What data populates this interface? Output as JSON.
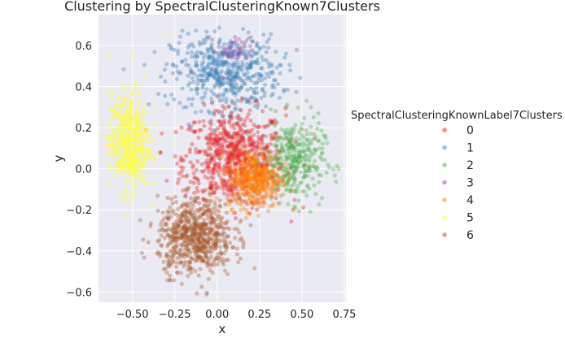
{
  "chart_data": {
    "type": "scatter",
    "title": "Clustering by SpectralClusteringKnown7Clusters",
    "xlabel": "x",
    "ylabel": "y",
    "xlim": [
      -0.7,
      0.76
    ],
    "ylim": [
      -0.65,
      0.75
    ],
    "xticks": [
      -0.5,
      -0.25,
      0.0,
      0.25,
      0.5,
      0.75
    ],
    "xtick_labels": [
      "−0.50",
      "−0.25",
      "0.00",
      "0.25",
      "0.50",
      "0.75"
    ],
    "yticks": [
      -0.6,
      -0.4,
      -0.2,
      0.0,
      0.2,
      0.4,
      0.6
    ],
    "ytick_labels": [
      "−0.6",
      "−0.4",
      "−0.2",
      "0.0",
      "0.2",
      "0.4",
      "0.6"
    ],
    "grid": true,
    "background": "#eaeaf2",
    "legend": {
      "title": "SpectralClusteringKnownLabel7Clusters",
      "placement": "right outside"
    },
    "series": [
      {
        "name": "0",
        "color": "#e41a1c",
        "approx_center": [
          0.1,
          0.05
        ],
        "approx_spread": [
          0.15,
          0.12
        ],
        "approx_points": 700
      },
      {
        "name": "1",
        "color": "#377eb8",
        "approx_center": [
          0.05,
          0.47
        ],
        "approx_spread": [
          0.16,
          0.09
        ],
        "approx_points": 500
      },
      {
        "name": "2",
        "color": "#4daf4a",
        "approx_center": [
          0.45,
          0.04
        ],
        "approx_spread": [
          0.09,
          0.1
        ],
        "approx_points": 350
      },
      {
        "name": "3",
        "color": "#984ea3",
        "approx_center": [
          0.1,
          0.58
        ],
        "approx_spread": [
          0.05,
          0.03
        ],
        "approx_points": 40
      },
      {
        "name": "4",
        "color": "#ff7f00",
        "approx_center": [
          0.22,
          -0.05
        ],
        "approx_spread": [
          0.08,
          0.07
        ],
        "approx_points": 400
      },
      {
        "name": "5",
        "color": "#ffff33",
        "approx_center": [
          -0.52,
          0.13
        ],
        "approx_spread": [
          0.06,
          0.12
        ],
        "approx_points": 450
      },
      {
        "name": "6",
        "color": "#a65628",
        "approx_center": [
          -0.13,
          -0.33
        ],
        "approx_spread": [
          0.11,
          0.09
        ],
        "approx_points": 650
      }
    ]
  }
}
